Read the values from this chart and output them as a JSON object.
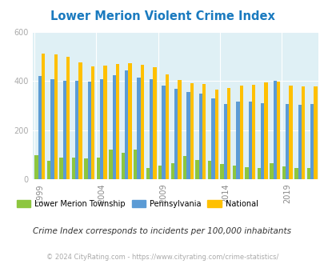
{
  "title": "Lower Merion Violent Crime Index",
  "years": [
    1999,
    2000,
    2001,
    2002,
    2003,
    2004,
    2005,
    2006,
    2007,
    2008,
    2009,
    2010,
    2011,
    2012,
    2013,
    2014,
    2015,
    2016,
    2017,
    2018,
    2019,
    2020,
    2021
  ],
  "lower_merion": [
    100,
    75,
    90,
    90,
    85,
    90,
    120,
    110,
    120,
    48,
    55,
    65,
    95,
    80,
    75,
    62,
    55,
    50,
    48,
    65,
    53,
    48,
    48
  ],
  "pennsylvania": [
    420,
    408,
    402,
    400,
    398,
    408,
    422,
    442,
    415,
    408,
    382,
    368,
    355,
    350,
    330,
    308,
    315,
    315,
    310,
    400,
    308,
    303,
    305
  ],
  "national": [
    510,
    508,
    498,
    474,
    460,
    463,
    470,
    472,
    465,
    456,
    428,
    404,
    390,
    387,
    365,
    373,
    382,
    383,
    395,
    398,
    380,
    378,
    379
  ],
  "bar_color_lm": "#8dc63f",
  "bar_color_pa": "#5b9bd5",
  "bar_color_nat": "#ffc000",
  "fig_bg": "#ffffff",
  "plot_bg": "#dff0f5",
  "ylim": [
    0,
    600
  ],
  "yticks": [
    0,
    200,
    400,
    600
  ],
  "xlabel_ticks": [
    1999,
    2004,
    2009,
    2014,
    2019
  ],
  "legend_lm": "Lower Merion Township",
  "legend_pa": "Pennsylvania",
  "legend_nat": "National",
  "footnote": "Crime Index corresponds to incidents per 100,000 inhabitants",
  "copyright": "© 2024 CityRating.com - https://www.cityrating.com/crime-statistics/",
  "title_color": "#1a7abf",
  "footnote_color": "#333333",
  "copyright_color": "#aaaaaa",
  "ytick_color": "#aaaaaa",
  "xtick_color": "#888888"
}
